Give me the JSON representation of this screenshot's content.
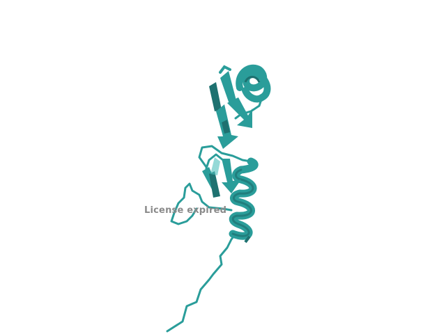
{
  "viewer": {
    "background_color": "#ffffff",
    "molecule": {
      "representation": "cartoon",
      "color": "#2a9d9a",
      "shade_color": "#1e7170",
      "highlight_color": "#4fc0bc"
    },
    "watermark": {
      "text": "License expired",
      "color": "#8a8a8a"
    }
  }
}
